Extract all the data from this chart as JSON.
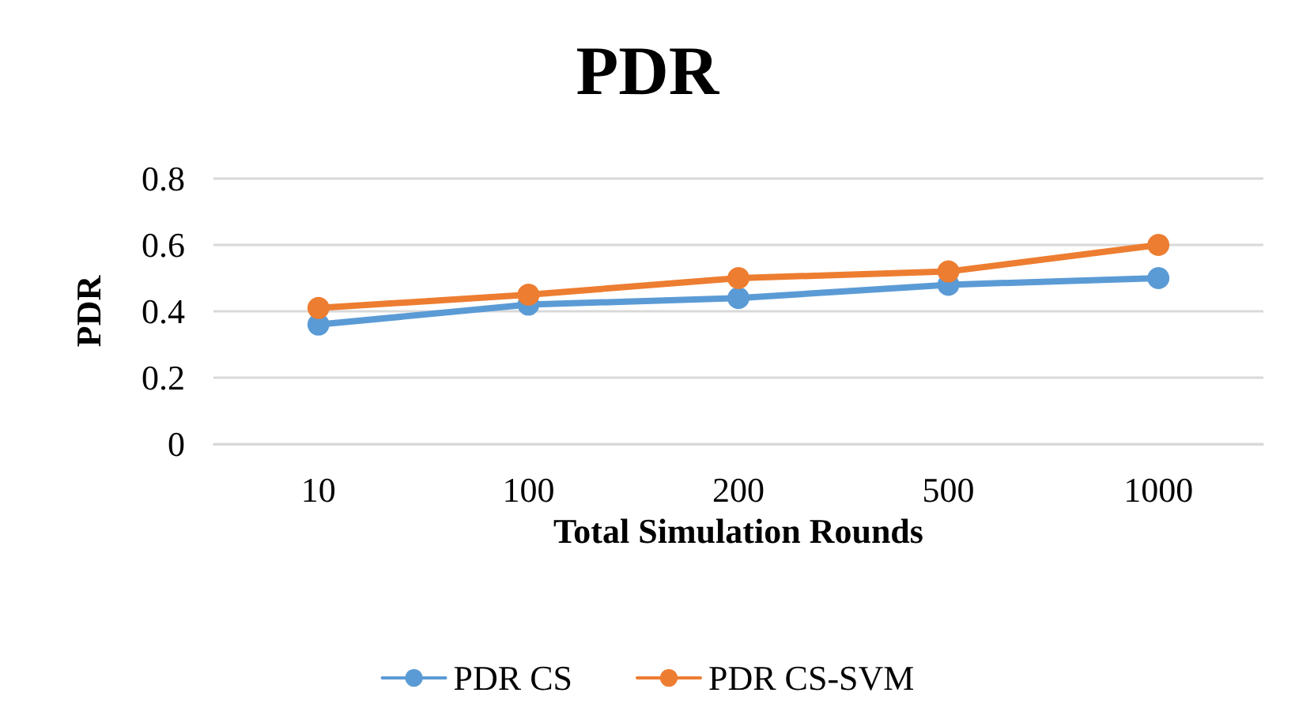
{
  "chart_data": {
    "type": "line",
    "title": "PDR",
    "xlabel": "Total Simulation Rounds",
    "ylabel": "PDR",
    "categories": [
      "10",
      "100",
      "200",
      "500",
      "1000"
    ],
    "series": [
      {
        "name": "PDR CS",
        "color": "#5b9bd5",
        "values": [
          0.36,
          0.42,
          0.44,
          0.48,
          0.5
        ]
      },
      {
        "name": "PDR CS-SVM",
        "color": "#ed7d31",
        "values": [
          0.41,
          0.45,
          0.5,
          0.52,
          0.6
        ]
      }
    ],
    "ylim": [
      0,
      0.8
    ],
    "yticks": [
      0,
      0.2,
      0.4,
      0.6,
      0.8
    ],
    "grid": "y",
    "legend": "bottom",
    "marker": "circle",
    "line_style": "solid"
  }
}
